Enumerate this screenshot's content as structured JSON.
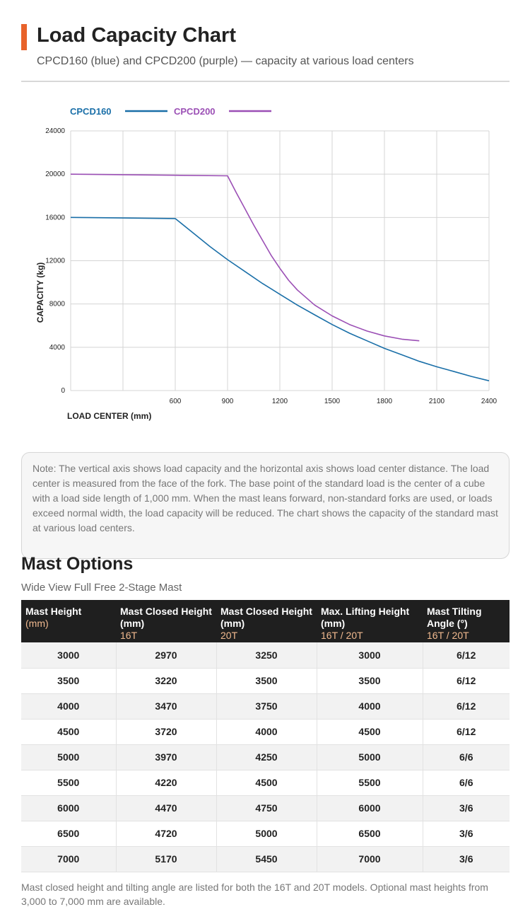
{
  "header": {
    "title": "Load Capacity Chart",
    "subtitle": "CPCD160 (blue) and CPCD200 (purple) — capacity at various load centers"
  },
  "colors": {
    "accent": "#e8622a",
    "cpcd160": "#1a6fa8",
    "cpcd200": "#9b4fb5"
  },
  "chart_data": {
    "type": "line",
    "xlabel": "LOAD CENTER (mm)",
    "ylabel": "CAPACITY (kg)",
    "xlim": [
      0,
      2400
    ],
    "ylim": [
      0,
      24000
    ],
    "x_ticks": [
      0,
      300,
      600,
      900,
      1200,
      1500,
      1800,
      2100,
      2400
    ],
    "x_tick_labels": [
      "",
      "",
      "600",
      "900",
      "1200",
      "1500",
      "1800",
      "2100",
      "2400"
    ],
    "y_ticks": [
      0,
      4000,
      8000,
      12000,
      16000,
      20000,
      24000
    ],
    "y_tick_labels": [
      "0",
      "4000",
      "8000",
      "12000",
      "16000",
      "20000",
      "24000"
    ],
    "grid": true,
    "legend_position": "top-left",
    "series": [
      {
        "name": "CPCD160",
        "color": "#1a6fa8",
        "points": [
          [
            0,
            16000
          ],
          [
            300,
            15950
          ],
          [
            600,
            15900
          ],
          [
            700,
            14600
          ],
          [
            800,
            13300
          ],
          [
            900,
            12100
          ],
          [
            1000,
            11000
          ],
          [
            1100,
            9900
          ],
          [
            1200,
            8900
          ],
          [
            1300,
            7900
          ],
          [
            1400,
            7000
          ],
          [
            1500,
            6100
          ],
          [
            1600,
            5300
          ],
          [
            1700,
            4600
          ],
          [
            1800,
            3900
          ],
          [
            1900,
            3300
          ],
          [
            2000,
            2700
          ],
          [
            2100,
            2200
          ],
          [
            2200,
            1750
          ],
          [
            2300,
            1300
          ],
          [
            2400,
            900
          ]
        ]
      },
      {
        "name": "CPCD200",
        "color": "#9b4fb5",
        "points": [
          [
            0,
            20000
          ],
          [
            300,
            19950
          ],
          [
            600,
            19900
          ],
          [
            900,
            19850
          ],
          [
            950,
            18300
          ],
          [
            1000,
            16800
          ],
          [
            1050,
            15300
          ],
          [
            1100,
            13900
          ],
          [
            1150,
            12500
          ],
          [
            1200,
            11300
          ],
          [
            1250,
            10200
          ],
          [
            1300,
            9300
          ],
          [
            1400,
            7900
          ],
          [
            1500,
            6900
          ],
          [
            1600,
            6100
          ],
          [
            1700,
            5500
          ],
          [
            1800,
            5050
          ],
          [
            1900,
            4750
          ],
          [
            2000,
            4600
          ]
        ]
      }
    ]
  },
  "note": "Note: The vertical axis shows load capacity and the horizontal axis shows load center distance. The load center is measured from the face of the fork. The base point of the standard load is the center of a cube with a load side length of 1,000 mm. When the mast leans forward, non-standard forks are used, or loads exceed normal width, the load capacity will be reduced. The chart shows the capacity of the standard mast at various load centers.",
  "mast": {
    "title": "Mast Options",
    "subtitle": "Wide View Full Free 2-Stage Mast",
    "columns": [
      {
        "label": "Mast Height",
        "sub": "(mm)"
      },
      {
        "label": "Mast Closed Height (mm)",
        "sub": "16T"
      },
      {
        "label": "Mast Closed Height (mm)",
        "sub": "20T"
      },
      {
        "label": "Max. Lifting Height (mm)",
        "sub": "16T / 20T"
      },
      {
        "label": "Mast Tilting Angle (°)",
        "sub": "16T / 20T"
      }
    ],
    "rows": [
      [
        "3000",
        "2970",
        "3250",
        "3000",
        "6/12"
      ],
      [
        "3500",
        "3220",
        "3500",
        "3500",
        "6/12"
      ],
      [
        "4000",
        "3470",
        "3750",
        "4000",
        "6/12"
      ],
      [
        "4500",
        "3720",
        "4000",
        "4500",
        "6/12"
      ],
      [
        "5000",
        "3970",
        "4250",
        "5000",
        "6/6"
      ],
      [
        "5500",
        "4220",
        "4500",
        "5500",
        "6/6"
      ],
      [
        "6000",
        "4470",
        "4750",
        "6000",
        "3/6"
      ],
      [
        "6500",
        "4720",
        "5000",
        "6500",
        "3/6"
      ],
      [
        "7000",
        "5170",
        "5450",
        "7000",
        "3/6"
      ]
    ],
    "footer": "Mast closed height and tilting angle are listed for both the 16T and 20T models. Optional mast heights from 3,000 to 7,000 mm are available."
  }
}
